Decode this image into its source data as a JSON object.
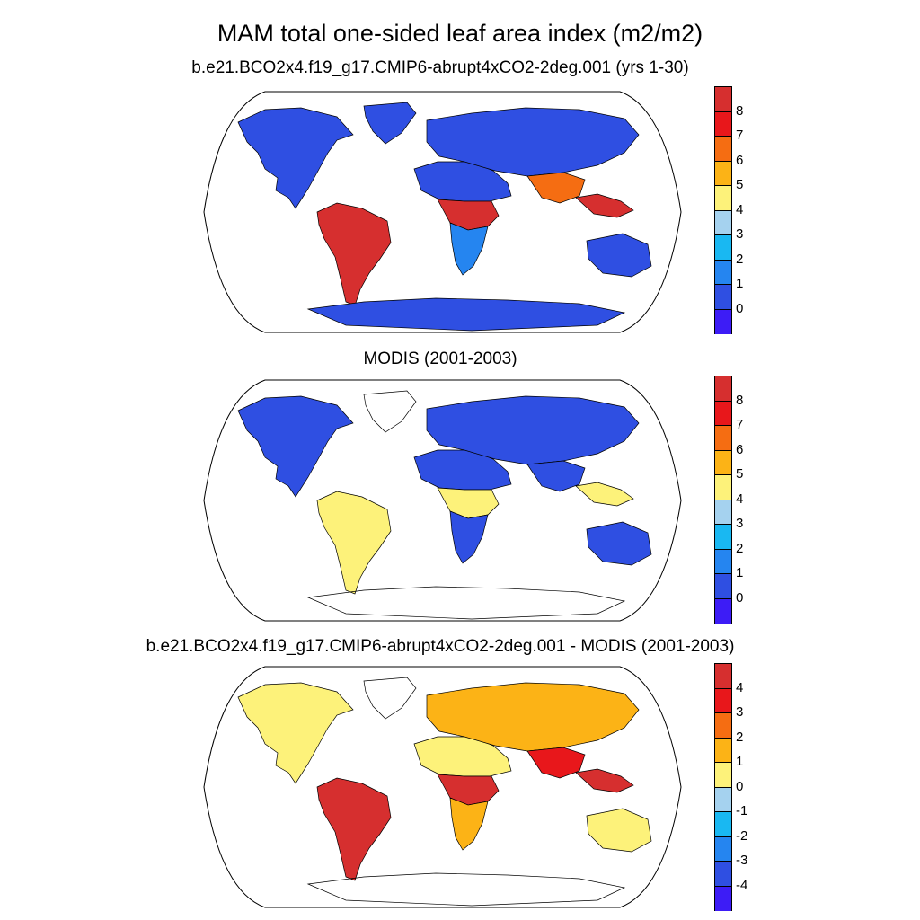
{
  "figure": {
    "title": "MAM total one-sided leaf area index (m2/m2)"
  },
  "panels": [
    {
      "title": "b.e21.BCO2x4.f19_g17.CMIP6-abrupt4xCO2-2deg.001 (yrs 1-30)",
      "colorbar": {
        "labels": [
          "8",
          "7",
          "6",
          "5",
          "4",
          "3",
          "2",
          "1",
          "0"
        ],
        "colors": [
          "#d62f2f",
          "#e8171b",
          "#f56d12",
          "#fcb316",
          "#fdf27a",
          "#a5d2ef",
          "#19b8f2",
          "#2585f0",
          "#2f4fe2",
          "#3d1cf6"
        ]
      },
      "regions": {
        "north_america": "#2f4fe2",
        "greenland": "#2f4fe2",
        "south_america": "#d62f2f",
        "africa_north": "#2f4fe2",
        "africa_central": "#d62f2f",
        "africa_south": "#2585f0",
        "eurasia": "#2f4fe2",
        "south_asia": "#f56d12",
        "maritime": "#d62f2f",
        "australia": "#2f4fe2",
        "antarctica": "#2f4fe2"
      }
    },
    {
      "title": "MODIS (2001-2003)",
      "colorbar": {
        "labels": [
          "8",
          "7",
          "6",
          "5",
          "4",
          "3",
          "2",
          "1",
          "0"
        ],
        "colors": [
          "#d62f2f",
          "#e8171b",
          "#f56d12",
          "#fcb316",
          "#fdf27a",
          "#a5d2ef",
          "#19b8f2",
          "#2585f0",
          "#2f4fe2",
          "#3d1cf6"
        ]
      },
      "regions": {
        "north_america": "#2f4fe2",
        "greenland": "none",
        "south_america": "#fdf27a",
        "africa_north": "#2f4fe2",
        "africa_central": "#fdf27a",
        "africa_south": "#2f4fe2",
        "eurasia": "#2f4fe2",
        "south_asia": "#2f4fe2",
        "maritime": "#fdf27a",
        "australia": "#2f4fe2",
        "antarctica": "none"
      }
    },
    {
      "title": "b.e21.BCO2x4.f19_g17.CMIP6-abrupt4xCO2-2deg.001 - MODIS (2001-2003)",
      "colorbar": {
        "labels": [
          "4",
          "3",
          "2",
          "1",
          "0",
          "-1",
          "-2",
          "-3",
          "-4"
        ],
        "colors": [
          "#d62f2f",
          "#e8171b",
          "#f56d12",
          "#fcb316",
          "#fdf27a",
          "#a5d2ef",
          "#19b8f2",
          "#2585f0",
          "#2f4fe2",
          "#3d1cf6"
        ]
      },
      "regions": {
        "north_america": "#fdf27a",
        "greenland": "none",
        "south_america": "#d62f2f",
        "africa_north": "#fdf27a",
        "africa_central": "#d62f2f",
        "africa_south": "#fcb316",
        "eurasia": "#fcb316",
        "south_asia": "#e8171b",
        "maritime": "#d62f2f",
        "australia": "#fdf27a",
        "antarctica": "none"
      }
    }
  ]
}
